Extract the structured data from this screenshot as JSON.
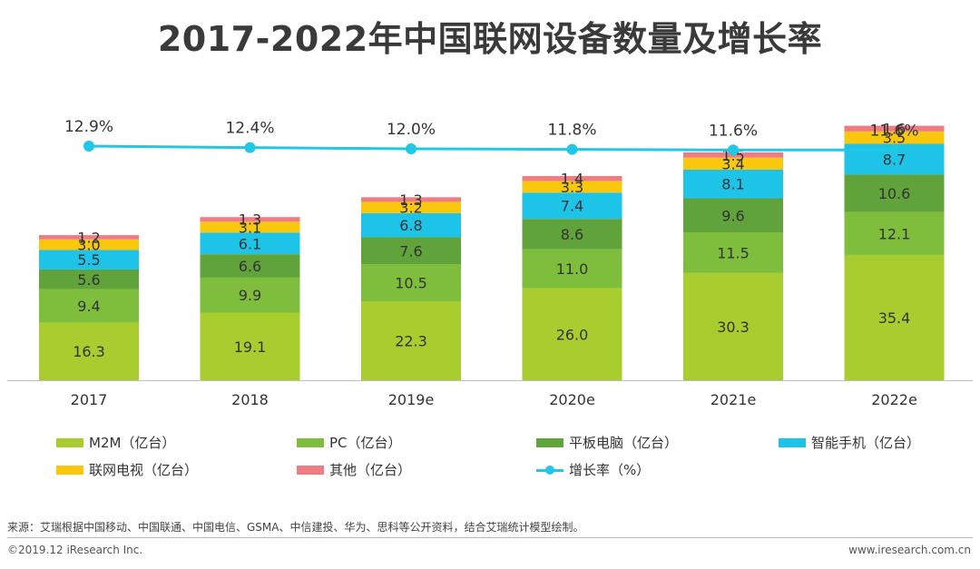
{
  "title": "2017-2022年中国联网设备数量及增长率",
  "source": "来源：艾瑞根据中国移动、中国联通、中国电信、GSMA、中信建投、华为、思科等公开资料，结合艾瑞统计模型绘制。",
  "copyright": "©2019.12 iResearch Inc.",
  "website": "www.iresearch.com.cn",
  "colors": {
    "m2m": "#a9cc2e",
    "pc": "#7fbe3c",
    "tablet": "#5fa33a",
    "phone": "#1ec3e8",
    "tv": "#f9c70c",
    "other": "#ee7c82",
    "growth": "#1ec8e6"
  },
  "chart_data": {
    "type": "bar",
    "stacked": true,
    "categories": [
      "2017",
      "2018",
      "2019e",
      "2020e",
      "2021e",
      "2022e"
    ],
    "series": [
      {
        "name": "M2M（亿台）",
        "key": "m2m",
        "values": [
          16.3,
          19.1,
          22.3,
          26.0,
          30.3,
          35.4
        ]
      },
      {
        "name": "PC（亿台）",
        "key": "pc",
        "values": [
          9.4,
          9.9,
          10.5,
          11.0,
          11.5,
          12.1
        ]
      },
      {
        "name": "平板电脑（亿台）",
        "key": "tablet",
        "values": [
          5.6,
          6.6,
          7.6,
          8.6,
          9.6,
          10.6
        ]
      },
      {
        "name": "智能手机（亿台）",
        "key": "phone",
        "values": [
          5.5,
          6.1,
          6.8,
          7.4,
          8.1,
          8.7
        ]
      },
      {
        "name": "联网电视（亿台）",
        "key": "tv",
        "values": [
          3.0,
          3.1,
          3.2,
          3.3,
          3.4,
          3.5
        ]
      },
      {
        "name": "其他（亿台）",
        "key": "other",
        "values": [
          1.2,
          1.3,
          1.3,
          1.4,
          1.5,
          1.6
        ]
      }
    ],
    "line_series": {
      "name": "增长率（%）",
      "key": "growth",
      "values": [
        12.9,
        12.4,
        12.0,
        11.8,
        11.6,
        11.6
      ],
      "value_labels": [
        "12.9%",
        "12.4%",
        "12.0%",
        "11.8%",
        "11.6%",
        "11.6%"
      ]
    },
    "value_labels": [
      [
        "16.3",
        "19.1",
        "22.3",
        "26.0",
        "30.3",
        "35.4"
      ],
      [
        "9.4",
        "9.9",
        "10.5",
        "11.0",
        "11.5",
        "12.1"
      ],
      [
        "5.6",
        "6.6",
        "7.6",
        "8.6",
        "9.6",
        "10.6"
      ],
      [
        "5.5",
        "6.1",
        "6.8",
        "7.4",
        "8.1",
        "8.7"
      ],
      [
        "3.0",
        "3.1",
        "3.2",
        "3.3",
        "3.4",
        "3.5"
      ],
      [
        "1.2",
        "1.3",
        "1.3",
        "1.4",
        "1.5",
        "1.6"
      ]
    ],
    "legend_position": "bottom",
    "grid": false
  }
}
